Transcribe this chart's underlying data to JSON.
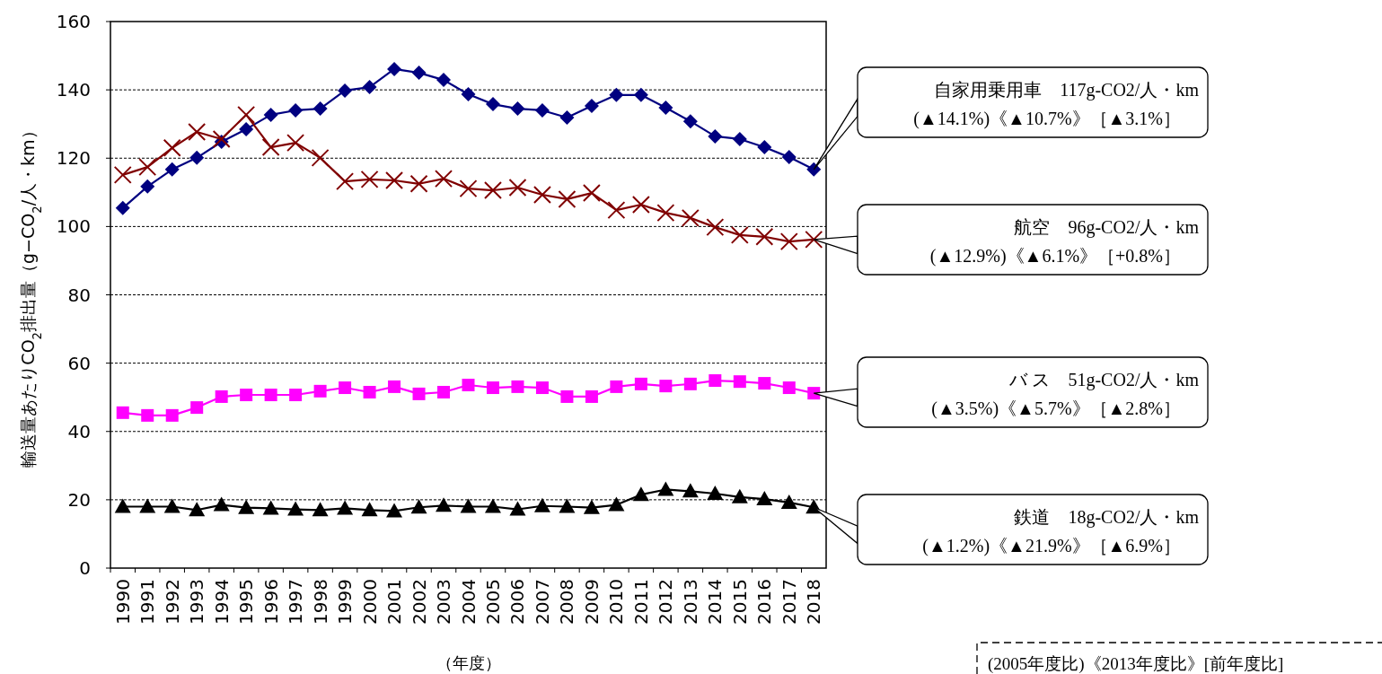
{
  "chart_data": {
    "type": "line",
    "ylabel": "輸送量あたりCO$_{2}$排出量（g−CO$_{2}$/人・km）",
    "xlabel": "（年度）",
    "categories": [
      "1990",
      "1991",
      "1992",
      "1993",
      "1994",
      "1995",
      "1996",
      "1997",
      "1998",
      "1999",
      "2000",
      "2001",
      "2002",
      "2003",
      "2004",
      "2005",
      "2006",
      "2007",
      "2008",
      "2009",
      "2010",
      "2011",
      "2012",
      "2013",
      "2014",
      "2015",
      "2016",
      "2017",
      "2018"
    ],
    "ylim": [
      0,
      160
    ],
    "yticks": [
      0,
      20,
      40,
      60,
      80,
      100,
      120,
      140,
      160
    ],
    "grid": "y",
    "series": [
      {
        "color": "#000080",
        "marker": "diamond",
        "values": [
          105.4,
          111.7,
          116.7,
          120.1,
          124.8,
          128.5,
          132.7,
          134,
          134.5,
          139.8,
          140.8,
          146.1,
          145,
          142.9,
          138.7,
          135.8,
          134.5,
          134,
          131.9,
          135.3,
          138.5,
          138.5,
          134.8,
          130.8,
          126.4,
          125.6,
          123.2,
          120.3,
          116.7
        ]
      },
      {
        "color": "#800000",
        "marker": "cross",
        "values": [
          115.1,
          117.4,
          123,
          127.7,
          125.6,
          132.7,
          123.2,
          124.5,
          120.1,
          113.2,
          113.8,
          113.5,
          112.5,
          114,
          111.1,
          110.6,
          111.4,
          109.3,
          108,
          109.8,
          104.8,
          106.4,
          104,
          102.5,
          99.8,
          97.5,
          97,
          95.6,
          96.2
        ]
      },
      {
        "color": "#ff00ff",
        "marker": "square",
        "values": [
          45.5,
          44.7,
          44.7,
          47,
          50.2,
          50.7,
          50.7,
          50.7,
          51.8,
          52.8,
          51.5,
          53.1,
          51,
          51.5,
          53.6,
          52.8,
          53.1,
          52.8,
          50.2,
          50.2,
          53.1,
          53.9,
          53.3,
          53.9,
          54.9,
          54.6,
          54.1,
          52.8,
          51.2
        ]
      },
      {
        "color": "#000000",
        "marker": "triangle",
        "values": [
          18,
          18,
          18,
          17,
          18.5,
          17.7,
          17.5,
          17.2,
          17,
          17.5,
          17,
          16.7,
          17.8,
          18.3,
          18,
          18,
          17.2,
          18.2,
          18,
          17.7,
          18.5,
          21.5,
          23,
          22.5,
          21.8,
          20.8,
          20.2,
          19.2,
          17.8
        ]
      }
    ],
    "annotations": [
      "自家用乗用車　117g-CO2/人・km (▲14.1%)《▲10.7%》［▲3.1%］",
      "航空　96g-CO2/人・km (▲12.9%)《▲6.1%》［+0.8%］",
      "バ ス　51g-CO2/人・km (▲3.5%)《▲5.7%》［▲2.8%］",
      "鉄道　18g-CO2/人・km (▲1.2%)《▲21.9%》［▲6.9%］",
      "(2005年度比)《2013年度比》[前年度比]"
    ]
  }
}
